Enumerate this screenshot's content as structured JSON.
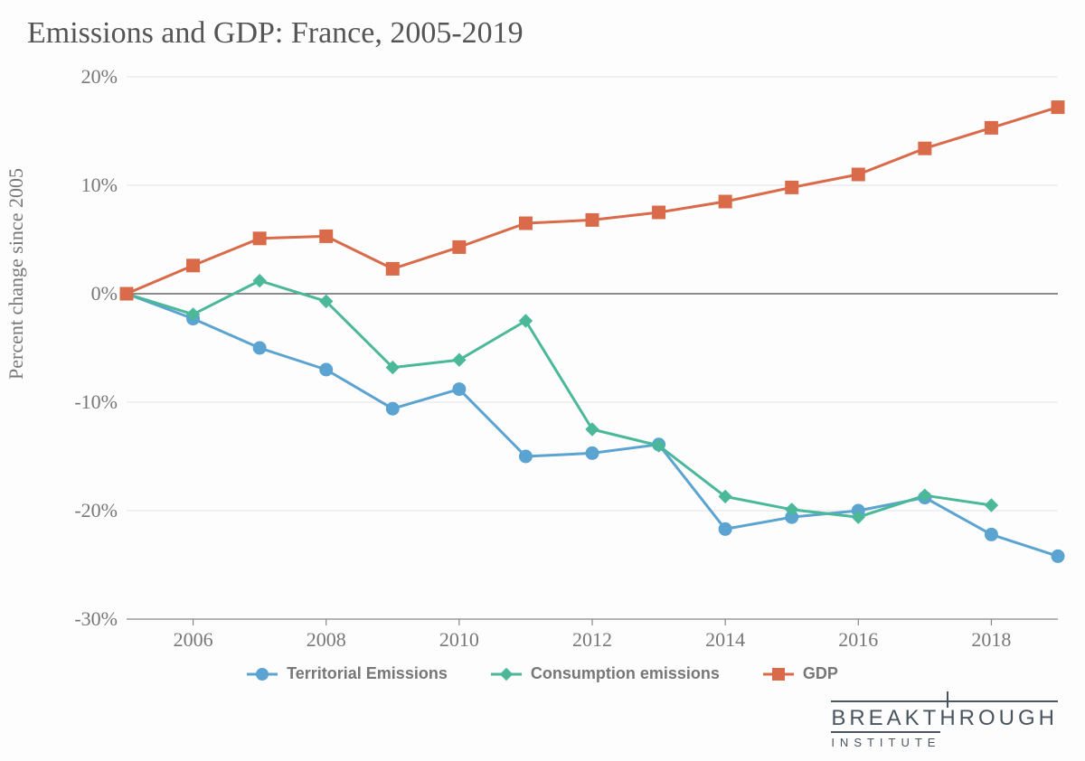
{
  "title": "Emissions and GDP: France, 2005-2019",
  "ylabel": "Percent change since 2005",
  "chart": {
    "type": "line",
    "background_color": "#fdfdfd",
    "grid_color": "#e3e3e3",
    "axis_color": "#888888",
    "zero_line_color": "#666666",
    "ylim": [
      -30,
      20
    ],
    "yticks": [
      -30,
      -20,
      -10,
      0,
      10,
      20
    ],
    "ytick_labels": [
      "-30%",
      "-20%",
      "-10%",
      "0%",
      "10%",
      "20%"
    ],
    "xlim": [
      2005,
      2019
    ],
    "xticks": [
      2006,
      2008,
      2010,
      2012,
      2014,
      2016,
      2018
    ],
    "xtick_labels": [
      "2006",
      "2008",
      "2010",
      "2012",
      "2014",
      "2016",
      "2018"
    ],
    "tick_fontsize": 22,
    "title_fontsize": 34,
    "label_fontsize": 22,
    "line_width": 3,
    "marker_size": 7,
    "series": [
      {
        "name": "Territorial Emissions",
        "color": "#5ba3d0",
        "marker": "circle",
        "x": [
          2005,
          2006,
          2007,
          2008,
          2009,
          2010,
          2011,
          2012,
          2013,
          2014,
          2015,
          2016,
          2017,
          2018,
          2019
        ],
        "y": [
          0.0,
          -2.3,
          -5.0,
          -7.0,
          -10.6,
          -8.8,
          -15.0,
          -14.7,
          -13.9,
          -21.7,
          -20.6,
          -20.0,
          -18.8,
          -22.2,
          -24.2
        ]
      },
      {
        "name": "Consumption emissions",
        "color": "#4bb89a",
        "marker": "diamond",
        "x": [
          2005,
          2006,
          2007,
          2008,
          2009,
          2010,
          2011,
          2012,
          2013,
          2014,
          2015,
          2016,
          2017,
          2018
        ],
        "y": [
          0.0,
          -1.9,
          1.2,
          -0.7,
          -6.8,
          -6.1,
          -2.5,
          -12.5,
          -14.0,
          -18.7,
          -19.9,
          -20.6,
          -18.6,
          -19.5
        ]
      },
      {
        "name": "GDP",
        "color": "#d96b4a",
        "marker": "square",
        "x": [
          2005,
          2006,
          2007,
          2008,
          2009,
          2010,
          2011,
          2012,
          2013,
          2014,
          2015,
          2016,
          2017,
          2018,
          2019
        ],
        "y": [
          0.0,
          2.6,
          5.1,
          5.3,
          2.3,
          4.3,
          6.5,
          6.8,
          7.5,
          8.5,
          9.8,
          11.0,
          13.4,
          15.3,
          17.2
        ]
      }
    ]
  },
  "legend": {
    "fontsize": 18,
    "font_weight": "bold",
    "items": [
      "Territorial Emissions",
      "Consumption emissions",
      "GDP"
    ]
  },
  "logo": {
    "line1": "BREAKTHROUGH",
    "line2": "INSTITUTE",
    "color": "#4a5560"
  }
}
